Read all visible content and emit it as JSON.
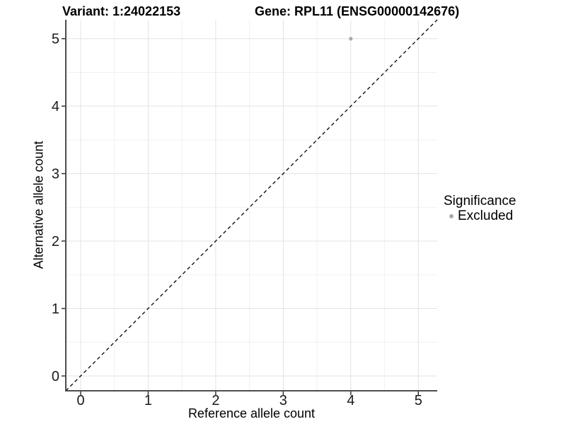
{
  "header": {
    "variant_title": "Variant: 1:24022153",
    "gene_title": "Gene: RPL11 (ENSG00000142676)"
  },
  "chart_data": {
    "type": "scatter",
    "title_left": "Variant: 1:24022153",
    "title_right": "Gene: RPL11 (ENSG00000142676)",
    "xlabel": "Reference allele count",
    "ylabel": "Alternative allele count",
    "xlim": [
      -0.22,
      5.28
    ],
    "ylim": [
      -0.22,
      5.28
    ],
    "x_ticks": [
      0,
      1,
      2,
      3,
      4,
      5
    ],
    "y_ticks": [
      0,
      1,
      2,
      3,
      4,
      5
    ],
    "x_minor_ticks": [
      0.5,
      1.5,
      2.5,
      3.5,
      4.5
    ],
    "y_minor_ticks": [
      0.5,
      1.5,
      2.5,
      3.5,
      4.5
    ],
    "grid": true,
    "reference_line": {
      "type": "identity",
      "equation": "y = x",
      "style": "dashed",
      "color": "#000000"
    },
    "series": [
      {
        "name": "Excluded",
        "color": "#aaaaaa",
        "points": [
          {
            "x": 4,
            "y": 5
          }
        ]
      }
    ],
    "legend": {
      "title": "Significance",
      "position": "right",
      "entries": [
        {
          "label": "Excluded",
          "color": "#aaaaaa"
        }
      ]
    }
  },
  "colors": {
    "background": "#ffffff",
    "grid_major": "#e3e3e3",
    "grid_minor": "#f1f1f1",
    "axis_line": "#4d4d4d",
    "tick_mark": "#333333",
    "tick_label": "#1a1a1a",
    "point": "#aaaaaa"
  }
}
